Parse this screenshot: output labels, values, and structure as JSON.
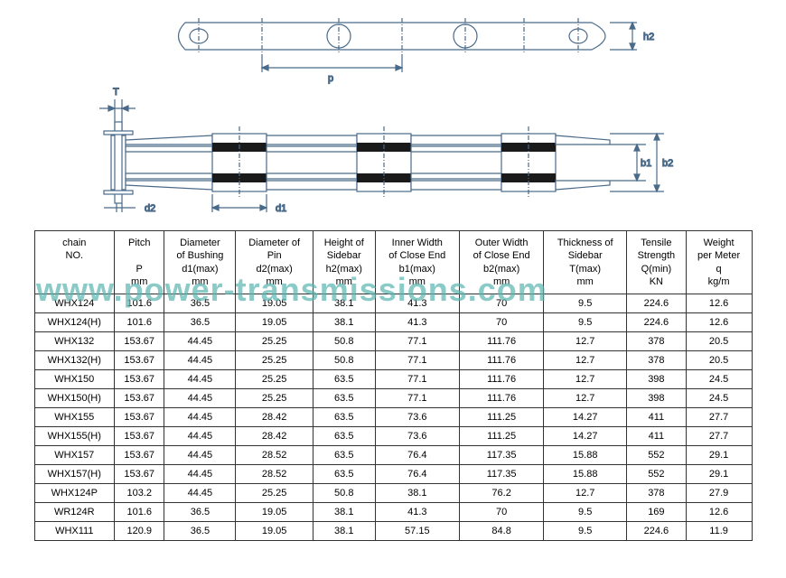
{
  "watermark": "www.power-transmissions.com",
  "diagram": {
    "labels": {
      "h2": "h2",
      "p": "p",
      "T": "T",
      "d1": "d1",
      "d2": "d2",
      "b1": "b1",
      "b2": "b2"
    },
    "stroke": "#4a6a8a",
    "fill_dark": "#1a1a1a"
  },
  "table": {
    "columns": [
      {
        "l1": "chain",
        "l2": "NO.",
        "l3": "",
        "l4": ""
      },
      {
        "l1": "Pitch",
        "l2": "",
        "l3": "P",
        "l4": "mm"
      },
      {
        "l1": "Diameter",
        "l2": "of Bushing",
        "l3": "d1(max)",
        "l4": "mm"
      },
      {
        "l1": "Diameter of",
        "l2": "Pin",
        "l3": "d2(max)",
        "l4": "mm"
      },
      {
        "l1": "Height of",
        "l2": "Sidebar",
        "l3": "h2(max)",
        "l4": "mm"
      },
      {
        "l1": "Inner Width",
        "l2": "of Close End",
        "l3": "b1(max)",
        "l4": "mm"
      },
      {
        "l1": "Outer Width",
        "l2": "of Close End",
        "l3": "b2(max)",
        "l4": "mm"
      },
      {
        "l1": "Thickness of",
        "l2": "Sidebar",
        "l3": "T(max)",
        "l4": "mm"
      },
      {
        "l1": "Tensile",
        "l2": "Strength",
        "l3": "Q(min)",
        "l4": "KN"
      },
      {
        "l1": "Weight",
        "l2": "per Meter",
        "l3": "q",
        "l4": "kg/m"
      }
    ],
    "rows": [
      [
        "WHX124",
        "101.6",
        "36.5",
        "19.05",
        "38.1",
        "41.3",
        "70",
        "9.5",
        "224.6",
        "12.6"
      ],
      [
        "WHX124(H)",
        "101.6",
        "36.5",
        "19.05",
        "38.1",
        "41.3",
        "70",
        "9.5",
        "224.6",
        "12.6"
      ],
      [
        "WHX132",
        "153.67",
        "44.45",
        "25.25",
        "50.8",
        "77.1",
        "111.76",
        "12.7",
        "378",
        "20.5"
      ],
      [
        "WHX132(H)",
        "153.67",
        "44.45",
        "25.25",
        "50.8",
        "77.1",
        "111.76",
        "12.7",
        "378",
        "20.5"
      ],
      [
        "WHX150",
        "153.67",
        "44.45",
        "25.25",
        "63.5",
        "77.1",
        "111.76",
        "12.7",
        "398",
        "24.5"
      ],
      [
        "WHX150(H)",
        "153.67",
        "44.45",
        "25.25",
        "63.5",
        "77.1",
        "111.76",
        "12.7",
        "398",
        "24.5"
      ],
      [
        "WHX155",
        "153.67",
        "44.45",
        "28.42",
        "63.5",
        "73.6",
        "111.25",
        "14.27",
        "411",
        "27.7"
      ],
      [
        "WHX155(H)",
        "153.67",
        "44.45",
        "28.42",
        "63.5",
        "73.6",
        "111.25",
        "14.27",
        "411",
        "27.7"
      ],
      [
        "WHX157",
        "153.67",
        "44.45",
        "28.52",
        "63.5",
        "76.4",
        "117.35",
        "15.88",
        "552",
        "29.1"
      ],
      [
        "WHX157(H)",
        "153.67",
        "44.45",
        "28.52",
        "63.5",
        "76.4",
        "117.35",
        "15.88",
        "552",
        "29.1"
      ],
      [
        "WHX124P",
        "103.2",
        "44.45",
        "25.25",
        "50.8",
        "38.1",
        "76.2",
        "12.7",
        "378",
        "27.9"
      ],
      [
        "WR124R",
        "101.6",
        "36.5",
        "19.05",
        "38.1",
        "41.3",
        "70",
        "9.5",
        "169",
        "12.6"
      ],
      [
        "WHX111",
        "120.9",
        "36.5",
        "19.05",
        "38.1",
        "57.15",
        "84.8",
        "9.5",
        "224.6",
        "11.9"
      ]
    ]
  }
}
